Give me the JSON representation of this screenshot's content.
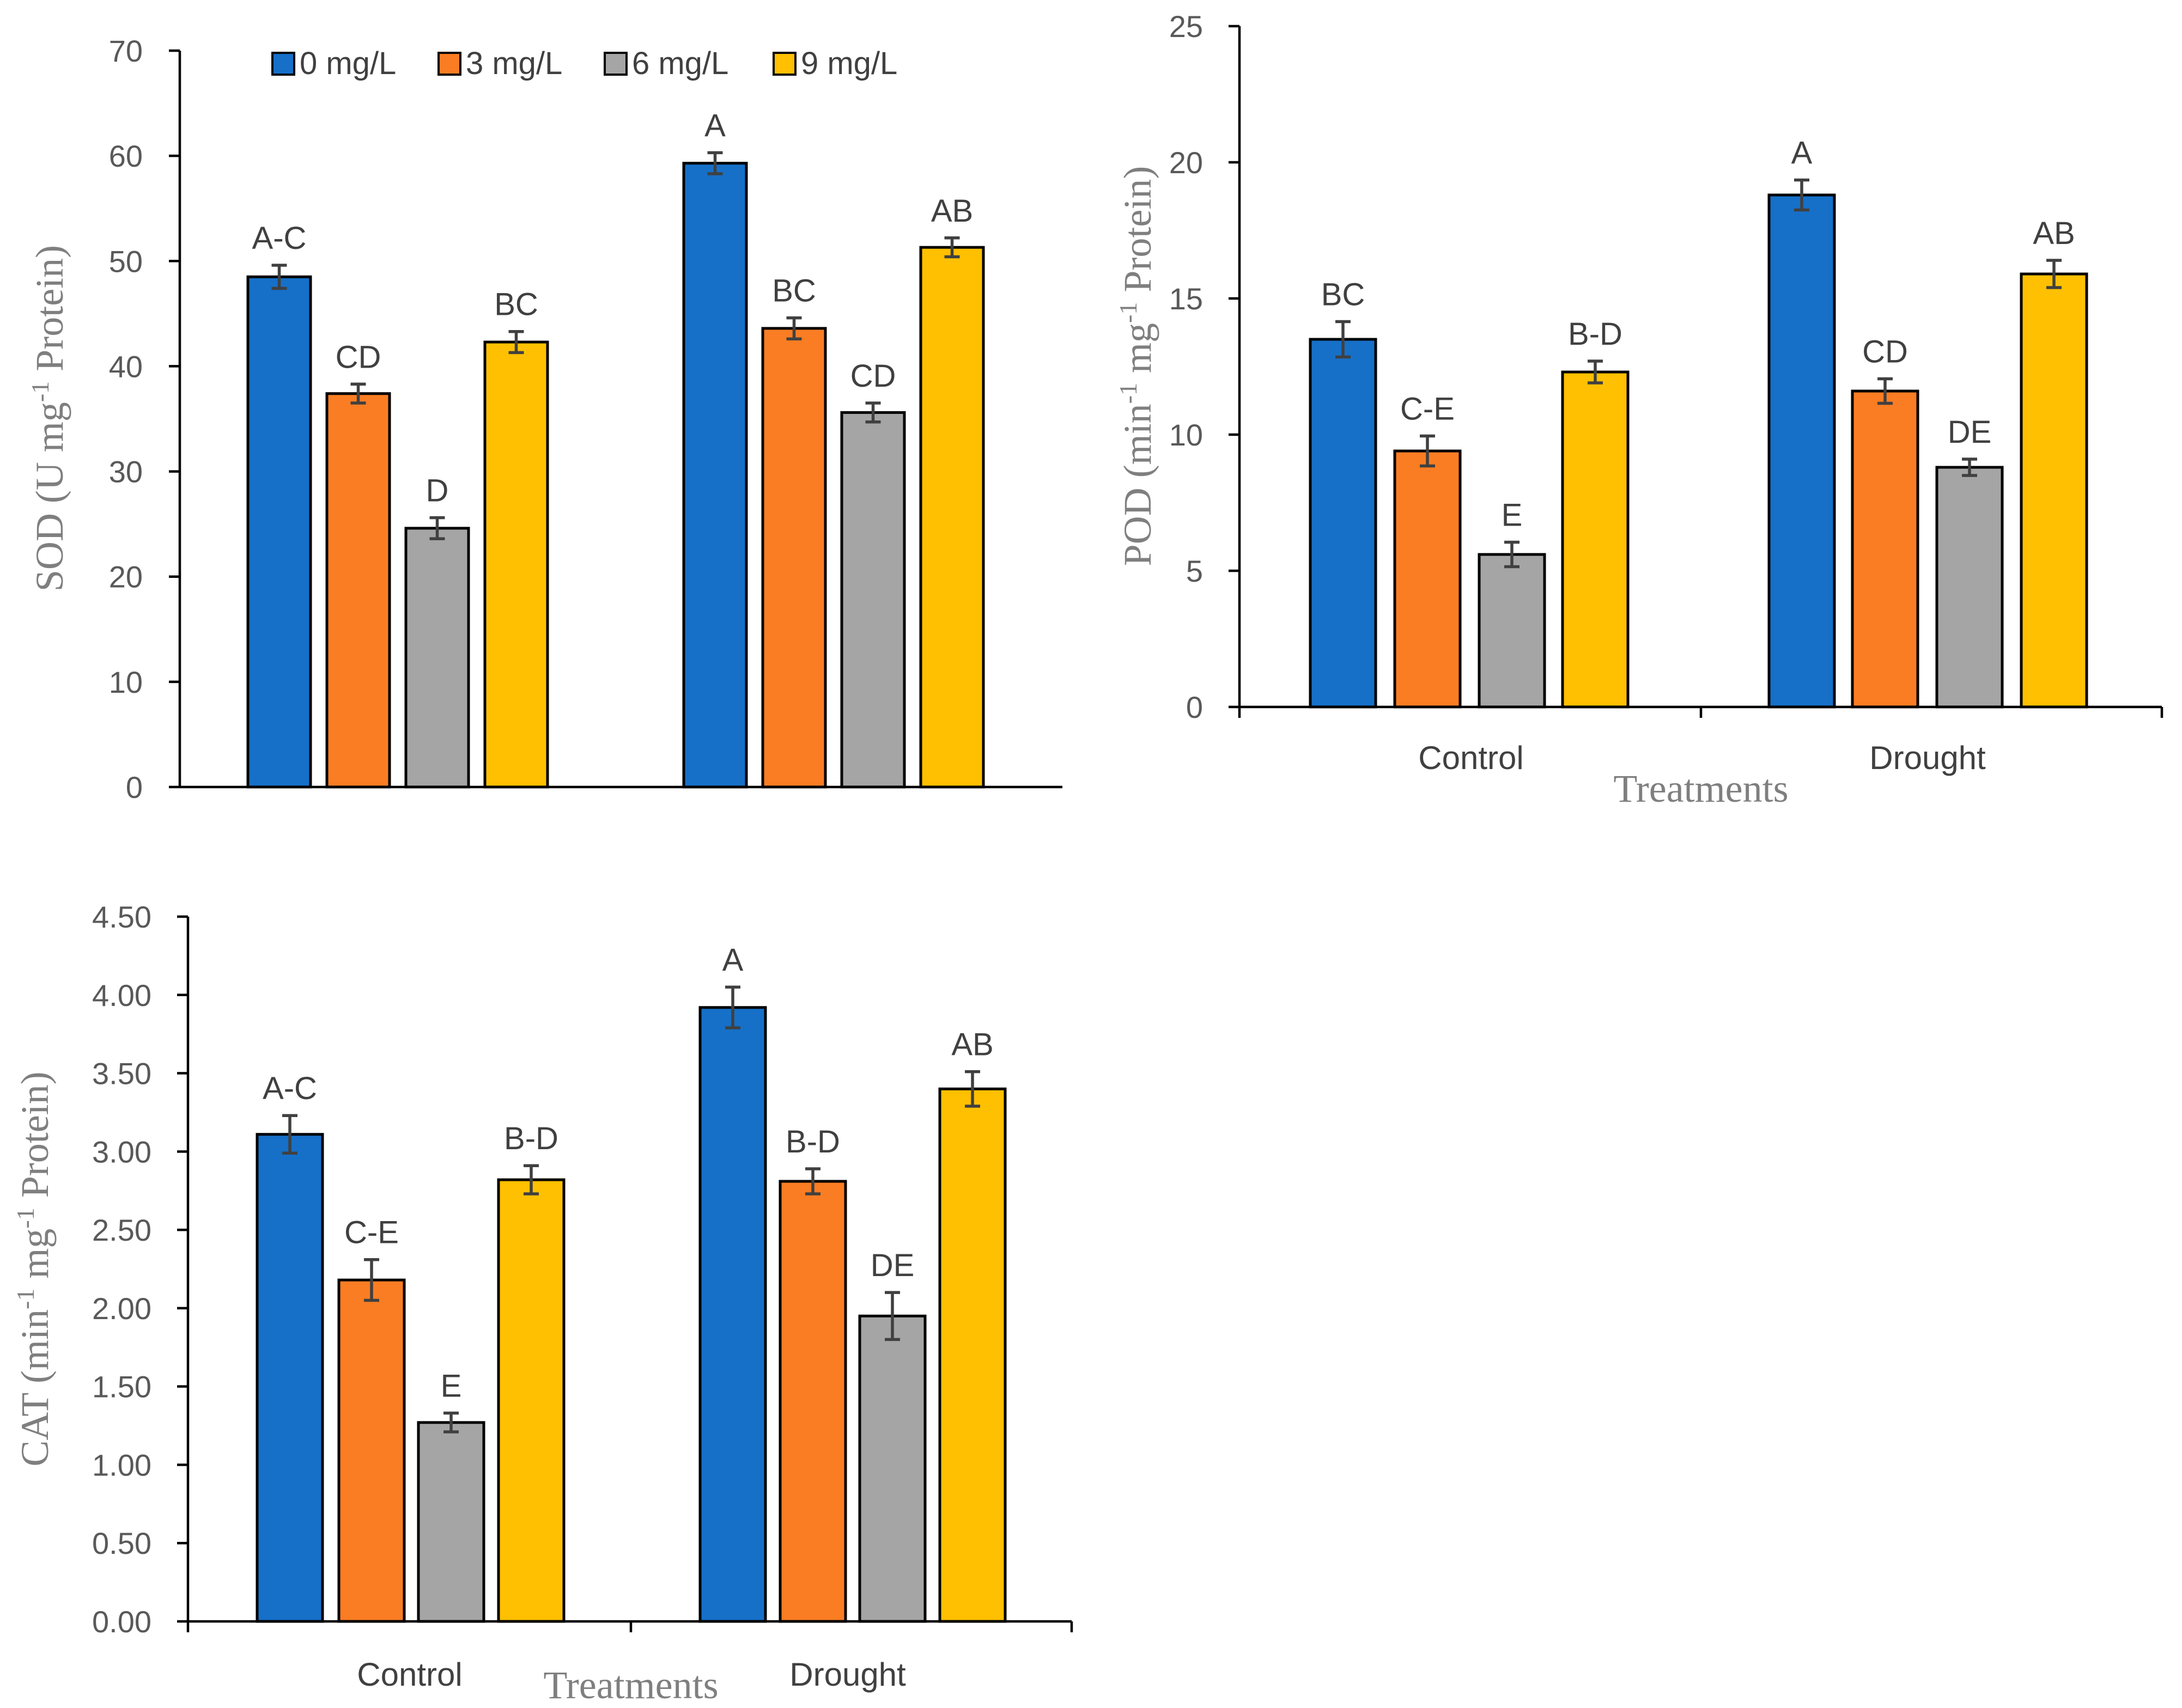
{
  "legend": {
    "items": [
      {
        "label": "0 mg/L",
        "color": "#1670C8"
      },
      {
        "label": "3 mg/L",
        "color": "#FA7D23"
      },
      {
        "label": "6 mg/L",
        "color": "#A5A5A5"
      },
      {
        "label": "9 mg/L",
        "color": "#FEC000"
      }
    ]
  },
  "chart_data": [
    {
      "id": "sod",
      "type": "bar",
      "ylabel": {
        "pre": "SOD (U mg",
        "sup": "-1",
        "post": " Protein)"
      },
      "xlabel": "",
      "categories": [
        "",
        ""
      ],
      "ylim": [
        0,
        70
      ],
      "yticks": [
        0,
        10,
        20,
        30,
        40,
        50,
        60,
        70
      ],
      "ytick_labels": [
        "0",
        "10",
        "20",
        "30",
        "40",
        "50",
        "60",
        "70"
      ],
      "series": [
        {
          "name": "0 mg/L",
          "values": [
            48.5,
            59.3
          ],
          "errors": [
            1.1,
            1.0
          ],
          "letters": [
            "A-C",
            "A"
          ]
        },
        {
          "name": "3 mg/L",
          "values": [
            37.4,
            43.6
          ],
          "errors": [
            0.9,
            1.0
          ],
          "letters": [
            "CD",
            "BC"
          ]
        },
        {
          "name": "6 mg/L",
          "values": [
            24.6,
            35.6
          ],
          "errors": [
            1.0,
            0.9
          ],
          "letters": [
            "D",
            "CD"
          ]
        },
        {
          "name": "9 mg/L",
          "values": [
            42.3,
            51.3
          ],
          "errors": [
            1.0,
            0.9
          ],
          "letters": [
            "BC",
            "AB"
          ]
        }
      ]
    },
    {
      "id": "pod",
      "type": "bar",
      "ylabel": {
        "pre": "POD (min",
        "sup": "-1",
        "mid": " mg",
        "sup2": "-1",
        "post": " Protein)"
      },
      "xlabel": "Treatments",
      "categories": [
        "Control",
        "Drought"
      ],
      "ylim": [
        0,
        25
      ],
      "yticks": [
        0,
        5,
        10,
        15,
        20,
        25
      ],
      "ytick_labels": [
        "0",
        "5",
        "10",
        "15",
        "20",
        "25"
      ],
      "series": [
        {
          "name": "0 mg/L",
          "values": [
            13.5,
            18.8
          ],
          "errors": [
            0.65,
            0.55
          ],
          "letters": [
            "BC",
            "A"
          ]
        },
        {
          "name": "3 mg/L",
          "values": [
            9.4,
            11.6
          ],
          "errors": [
            0.55,
            0.45
          ],
          "letters": [
            "C-E",
            "CD"
          ]
        },
        {
          "name": "6 mg/L",
          "values": [
            5.6,
            8.8
          ],
          "errors": [
            0.45,
            0.3
          ],
          "letters": [
            "E",
            "DE"
          ]
        },
        {
          "name": "9 mg/L",
          "values": [
            12.3,
            15.9
          ],
          "errors": [
            0.4,
            0.5
          ],
          "letters": [
            "B-D",
            "AB"
          ]
        }
      ]
    },
    {
      "id": "cat",
      "type": "bar",
      "ylabel": {
        "pre": "CAT (min",
        "sup": "-1",
        "mid": " mg",
        "sup2": "-1",
        "post": " Protein)"
      },
      "xlabel": "Treatments",
      "categories": [
        "Control",
        "Drought"
      ],
      "ylim": [
        0,
        4.5
      ],
      "yticks": [
        0,
        0.5,
        1.0,
        1.5,
        2.0,
        2.5,
        3.0,
        3.5,
        4.0,
        4.5
      ],
      "ytick_labels": [
        "0.00",
        "0.50",
        "1.00",
        "1.50",
        "2.00",
        "2.50",
        "3.00",
        "3.50",
        "4.00",
        "4.50"
      ],
      "series": [
        {
          "name": "0 mg/L",
          "values": [
            3.11,
            3.92
          ],
          "errors": [
            0.12,
            0.13
          ],
          "letters": [
            "A-C",
            "A"
          ]
        },
        {
          "name": "3 mg/L",
          "values": [
            2.18,
            2.81
          ],
          "errors": [
            0.13,
            0.08
          ],
          "letters": [
            "C-E",
            "B-D"
          ]
        },
        {
          "name": "6 mg/L",
          "values": [
            1.27,
            1.95
          ],
          "errors": [
            0.06,
            0.15
          ],
          "letters": [
            "E",
            "DE"
          ]
        },
        {
          "name": "9 mg/L",
          "values": [
            2.82,
            3.4
          ],
          "errors": [
            0.09,
            0.11
          ],
          "letters": [
            "B-D",
            "AB"
          ]
        }
      ]
    }
  ]
}
